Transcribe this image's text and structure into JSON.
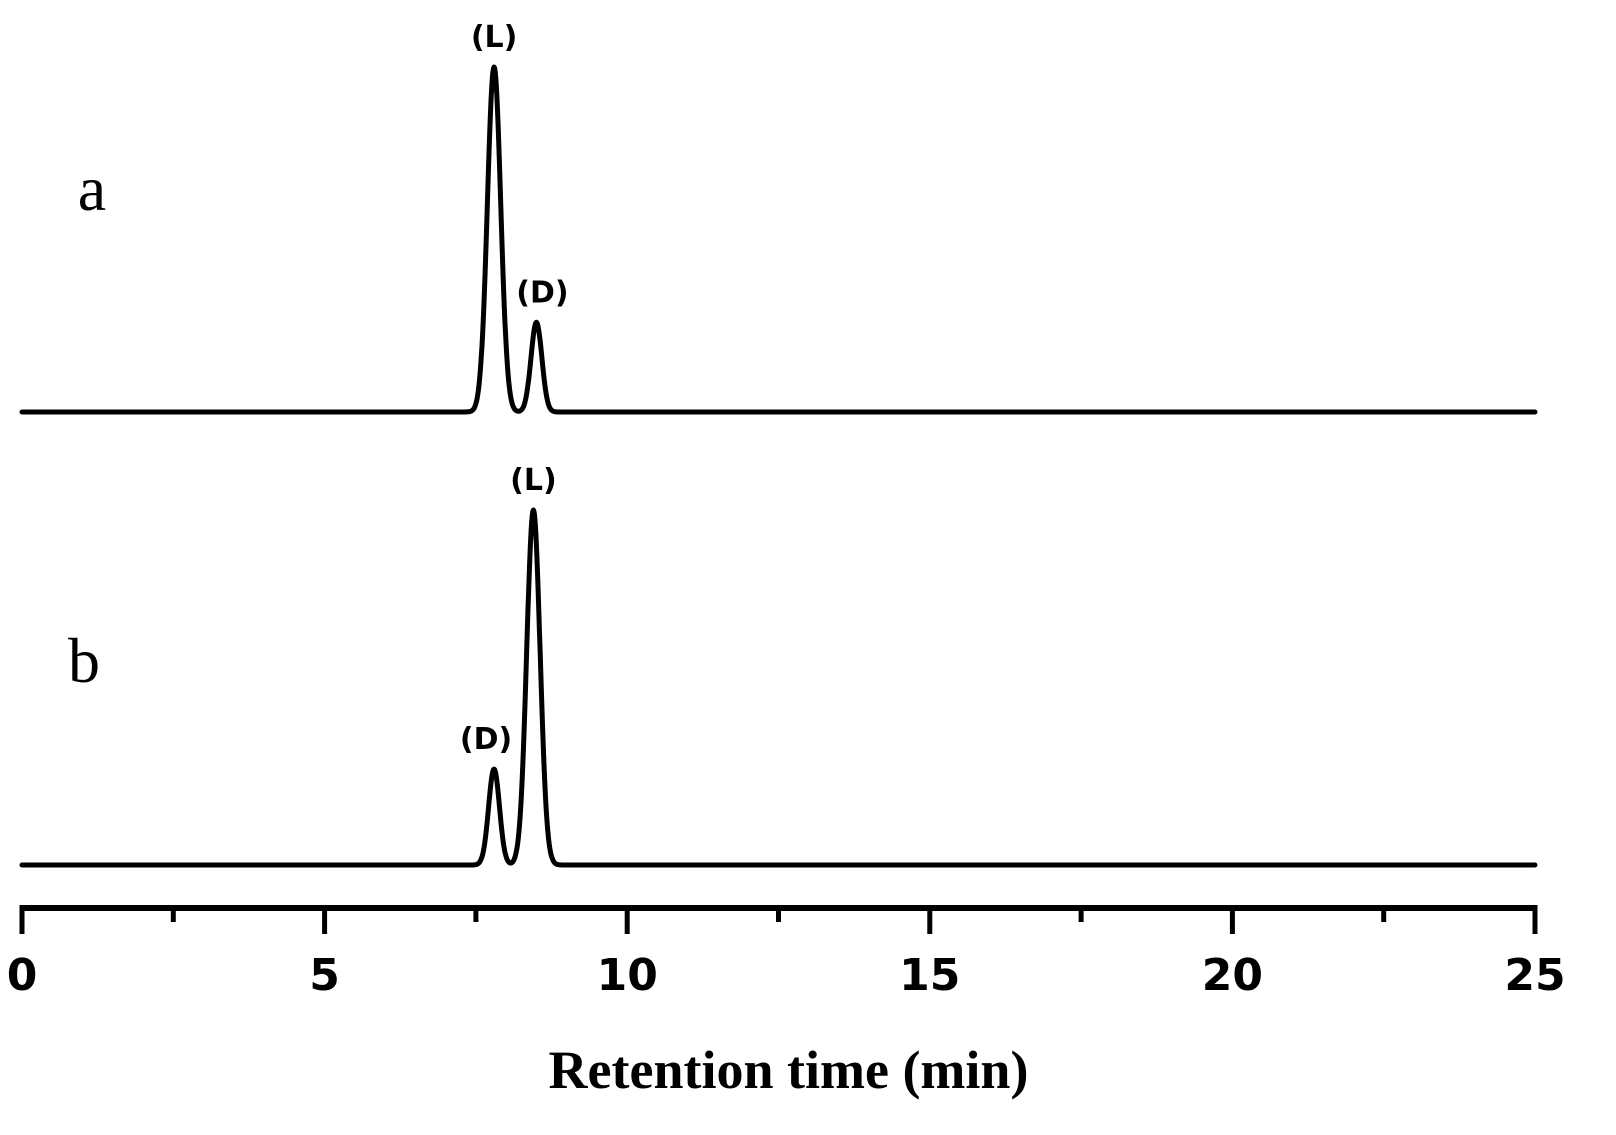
{
  "chart_data": {
    "type": "line",
    "title": "",
    "xlabel": "Retention time (min)",
    "ylabel": "",
    "xlim": [
      0,
      25
    ],
    "x_ticks": [
      0,
      5,
      10,
      15,
      20,
      25
    ],
    "x_minor_ticks": [
      2.5,
      7.5,
      12.5,
      17.5,
      22.5
    ],
    "grid": false,
    "series": [
      {
        "name": "a",
        "peaks": [
          {
            "label": "(L)",
            "time": 7.8,
            "relative_height": 1.0,
            "width": 0.11
          },
          {
            "label": "(D)",
            "time": 8.5,
            "relative_height": 0.26,
            "width": 0.09
          }
        ]
      },
      {
        "name": "b",
        "peaks": [
          {
            "label": "(D)",
            "time": 7.8,
            "relative_height": 0.27,
            "width": 0.09
          },
          {
            "label": "(L)",
            "time": 8.45,
            "relative_height": 1.0,
            "width": 0.11
          }
        ]
      }
    ]
  }
}
